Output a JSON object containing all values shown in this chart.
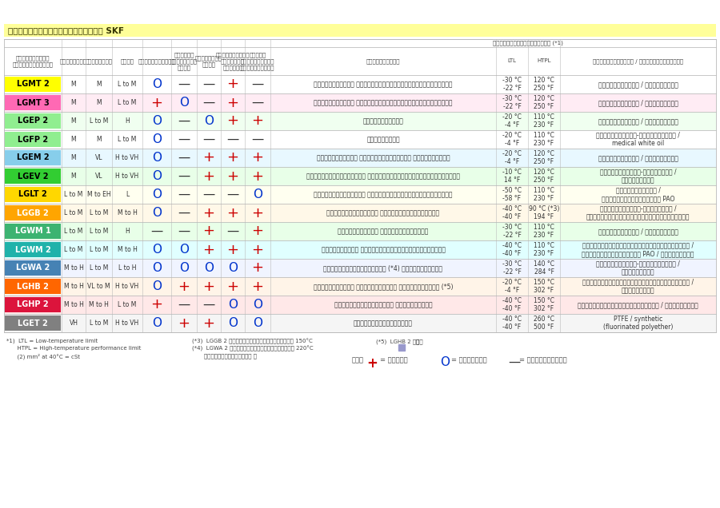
{
  "title": "ตารางเลือกจาระบีของ SKF",
  "title_bar_color": "#FFFF99",
  "bg_color": "#FFFFFF",
  "grid_color": "#BBBBBB",
  "temp_subheader": "ช่วงอุณหภูมิทำงาน (*1)",
  "rows": [
    {
      "name": "LGMT 2",
      "name_bg": "#FFFF00",
      "name_color": "#000000",
      "row_bg": "#FFFFFF",
      "viscosity": "M",
      "speed": "M",
      "load": "L to M",
      "vertical": "O",
      "oscillating": "—",
      "reversing": "—",
      "vibration": "+",
      "shock": "—",
      "description": "อเนกประสงค์ สำหรับอุตสาหกรรมและยานยนต์",
      "ltl": "-30 °C\n-22 °F",
      "htpl": "120 °C\n250 °F",
      "base": "ไอโซฟิเลียม / น้ำมันแร่"
    },
    {
      "name": "LGMT 3",
      "name_bg": "#FF69B4",
      "name_color": "#000000",
      "row_bg": "#FFECF4",
      "viscosity": "M",
      "speed": "M",
      "load": "L to M",
      "vertical": "+",
      "oscillating": "O",
      "reversing": "—",
      "vibration": "+",
      "shock": "—",
      "description": "อเนกประสงค์ สำหรับอุตสาหกรรมและยานยนต์",
      "ltl": "-30 °C\n-22 °F",
      "htpl": "120 °C\n250 °F",
      "base": "ไอโซฟิเลียม / น้ำมันแร่"
    },
    {
      "name": "LGEP 2",
      "name_bg": "#90EE90",
      "name_color": "#000000",
      "row_bg": "#F0FFF0",
      "viscosity": "M",
      "speed": "L to M",
      "load": "H",
      "vertical": "O",
      "oscillating": "—",
      "reversing": "O",
      "vibration": "+",
      "shock": "+",
      "description": "รับแรงกดสูง",
      "ltl": "-20 °C\n-4 °F",
      "htpl": "110 °C\n230 °F",
      "base": "ไอโซฟิเลียม / น้ำมันแร่"
    },
    {
      "name": "LGFP 2",
      "name_bg": "#90EE90",
      "name_color": "#000000",
      "row_bg": "#FFFFFF",
      "viscosity": "M",
      "speed": "M",
      "load": "L to M",
      "vertical": "O",
      "oscillating": "—",
      "reversing": "—",
      "vibration": "—",
      "shock": "—",
      "description": "เกรดอาหาร",
      "ltl": "-20 °C\n-4 °F",
      "htpl": "110 °C\n230 °F",
      "base": "ไอโซฟิเลียม-คอมเพล็กซ์ /\nmedical white oil"
    },
    {
      "name": "LGEM 2",
      "name_bg": "#87CEEB",
      "name_color": "#000000",
      "row_bg": "#E8F8FF",
      "viscosity": "M",
      "speed": "VL",
      "load": "H to VH",
      "vertical": "O",
      "oscillating": "—",
      "reversing": "+",
      "vibration": "+",
      "shock": "+",
      "description": "ความหนืดสูง พร้อมสารโมลิสิ และกราไฟต์",
      "ltl": "-20 °C\n-4 °F",
      "htpl": "120 °C\n250 °F",
      "base": "ไอโซฟิเลียม / น้ำมันแร่"
    },
    {
      "name": "LGEV 2",
      "name_bg": "#32CD32",
      "name_color": "#000000",
      "row_bg": "#E8FFE8",
      "viscosity": "M",
      "speed": "VL",
      "load": "H to VH",
      "vertical": "O",
      "oscillating": "—",
      "reversing": "+",
      "vibration": "+",
      "shock": "+",
      "description": "ความหนืดสูงพิเศษ พร้อมสารโมลิสินและกราไฟต์",
      "ltl": "-10 °C\n14 °F",
      "htpl": "120 °C\n250 °F",
      "base": "ไอโซฟิเลียม-แคลเซียม /\nน้ำมันแร่"
    },
    {
      "name": "LGLT 2",
      "name_bg": "#FFD700",
      "name_color": "#000000",
      "row_bg": "#FFFFF0",
      "viscosity": "L to M",
      "speed": "M to EH",
      "load": "L",
      "vertical": "O",
      "oscillating": "—",
      "reversing": "—",
      "vibration": "—",
      "shock": "O",
      "description": "หนุดหนุดน้ำมัน ความเร็วรอบหมุนสูงพิเศษ",
      "ltl": "-50 °C\n-58 °F",
      "htpl": "110 °C\n230 °F",
      "base": "ไอโซฟิเลียม /\nน้ำมันสังเคราะห์ PAO"
    },
    {
      "name": "LGGB 2",
      "name_bg": "#FFA500",
      "name_color": "#FFFFFF",
      "row_bg": "#FFF8E8",
      "viscosity": "L to M",
      "speed": "L to M",
      "load": "M to H",
      "vertical": "O",
      "oscillating": "—",
      "reversing": "+",
      "vibration": "+",
      "shock": "+",
      "description": "ย่อยสลายได้เอง มีความเป็นพิษต่ำ",
      "ltl": "-40 °C\n-40 °F",
      "htpl": "90 °C (*3)\n194 °F",
      "base": "ไอโซฟิเลียม-แคลเซียม /\nน้ำมันสังเคราะห์โอลีอีสเตอร์"
    },
    {
      "name": "LGWM 1",
      "name_bg": "#3CB371",
      "name_color": "#FFFFFF",
      "row_bg": "#E8FFE8",
      "viscosity": "L to M",
      "speed": "L to M",
      "load": "H",
      "vertical": "—",
      "oscillating": "—",
      "reversing": "+",
      "vibration": "—",
      "shock": "+",
      "description": "รับแรงกดสูง หนุดหนุดน้ำดำ",
      "ltl": "-30 °C\n-22 °F",
      "htpl": "110 °C\n230 °F",
      "base": "ไอโซฟิเลียม / น้ำมันแร่"
    },
    {
      "name": "LGWM 2",
      "name_bg": "#20B2AA",
      "name_color": "#FFFFFF",
      "row_bg": "#E0FFFF",
      "viscosity": "L to M",
      "speed": "L to M",
      "load": "M to H",
      "vertical": "O",
      "oscillating": "O",
      "reversing": "+",
      "vibration": "+",
      "shock": "+",
      "description": "รับโหลดสูง ใช้งานช่วงอุณหภูมิกว้าง",
      "ltl": "-40 °C\n-40 °F",
      "htpl": "110 °C\n230 °F",
      "base": "ไอโซฟิเลียมแคลเซียมคอมเพล็กซ์ /\nน้ำมันสังเคราะห์ PAO / น้ำมันแร่"
    },
    {
      "name": "LGWA 2",
      "name_bg": "#4682B4",
      "name_color": "#FFFFFF",
      "row_bg": "#F0F4FF",
      "viscosity": "M to H",
      "speed": "L to M",
      "load": "L to H",
      "vertical": "O",
      "oscillating": "O",
      "reversing": "O",
      "vibration": "O",
      "shock": "+",
      "description": "ช่วงอุณหภูมิกว้าง (*4) รับแรงกดสูง",
      "ltl": "-30 °C\n-22 °F",
      "htpl": "140 °C\n284 °F",
      "base": "ไอโซฟิเลียม-คอมเพล็กซ์ /\nน้ำมันแร่"
    },
    {
      "name": "LGHB 2",
      "name_bg": "#FF6600",
      "name_color": "#FFFFFF",
      "row_bg": "#FFF4E8",
      "viscosity": "M to H",
      "speed": "VL to M",
      "load": "H to VH",
      "vertical": "O",
      "oscillating": "+",
      "reversing": "+",
      "vibration": "+",
      "shock": "+",
      "description": "รับแรงกดสูง ความหนืดสูง อุณหภูมิสูง (*5)",
      "ltl": "-20 °C\n-4 °F",
      "htpl": "150 °C\n302 °F",
      "base": "ไอโซฟิเลียมแคลเซียมคอมเพล็กซ์ /\nน้ำมันแร่"
    },
    {
      "name": "LGHP 2",
      "name_bg": "#DC143C",
      "name_color": "#FFFFFF",
      "row_bg": "#FFE8E8",
      "viscosity": "M to H",
      "speed": "M to H",
      "load": "L to M",
      "vertical": "+",
      "oscillating": "—",
      "reversing": "—",
      "vibration": "O",
      "shock": "O",
      "description": "จาระบีโพลียูเรีย สมรรถนะสูง",
      "ltl": "-40 °C\n-40 °F",
      "htpl": "150 °C\n302 °F",
      "base": "สารฐานน้ำมันโพลียูเรีย / น้ำมันแร่"
    },
    {
      "name": "LGET 2",
      "name_bg": "#808080",
      "name_color": "#FFFFFF",
      "row_bg": "#F5F5F5",
      "viscosity": "VH",
      "speed": "L to M",
      "load": "H to VH",
      "vertical": "O",
      "oscillating": "+",
      "reversing": "+",
      "vibration": "O",
      "shock": "O",
      "description": "หนุดหนุดสูงพิเศษ",
      "ltl": "-40 °C\n-40 °F",
      "htpl": "260 °C\n500 °F",
      "base": "PTFE / synthetic\n(fluorinated polyether)"
    }
  ]
}
